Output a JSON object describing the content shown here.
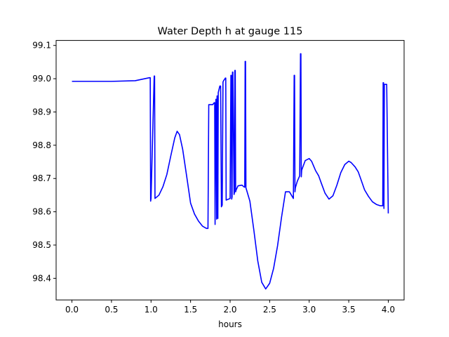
{
  "chart_data": {
    "type": "line",
    "title": "Water Depth h at gauge 115",
    "xlabel": "hours",
    "ylabel": "",
    "xlim": [
      -0.2,
      4.2
    ],
    "ylim": [
      98.335,
      99.115
    ],
    "xticks": [
      0.0,
      0.5,
      1.0,
      1.5,
      2.0,
      2.5,
      3.0,
      3.5,
      4.0
    ],
    "xtick_labels": [
      "0.0",
      "0.5",
      "1.0",
      "1.5",
      "2.0",
      "2.5",
      "3.0",
      "3.5",
      "4.0"
    ],
    "yticks": [
      98.4,
      98.5,
      98.6,
      98.7,
      98.8,
      98.9,
      99.0,
      99.1
    ],
    "ytick_labels": [
      "98.4",
      "98.5",
      "98.6",
      "98.7",
      "98.8",
      "98.9",
      "99.0",
      "99.1"
    ],
    "grid": false,
    "series": [
      {
        "color": "#0000ff",
        "x": [
          0.0,
          0.5,
          0.8,
          0.98,
          0.99,
          0.995,
          1.0,
          1.04,
          1.045,
          1.05,
          1.1,
          1.15,
          1.2,
          1.25,
          1.3,
          1.33,
          1.36,
          1.4,
          1.45,
          1.5,
          1.55,
          1.6,
          1.65,
          1.7,
          1.72,
          1.73,
          1.76,
          1.78,
          1.8,
          1.805,
          1.81,
          1.82,
          1.825,
          1.83,
          1.835,
          1.84,
          1.845,
          1.85,
          1.87,
          1.88,
          1.89,
          1.9,
          1.91,
          1.92,
          1.93,
          1.94,
          1.945,
          1.95,
          2.0,
          2.01,
          2.015,
          2.02,
          2.025,
          2.03,
          2.035,
          2.05,
          2.055,
          2.06,
          2.065,
          2.07,
          2.075,
          2.1,
          2.15,
          2.18,
          2.185,
          2.19,
          2.195,
          2.2,
          2.25,
          2.3,
          2.35,
          2.4,
          2.45,
          2.5,
          2.55,
          2.6,
          2.65,
          2.7,
          2.75,
          2.8,
          2.81,
          2.815,
          2.82,
          2.825,
          2.85,
          2.88,
          2.89,
          2.895,
          2.9,
          2.905,
          2.95,
          3.0,
          3.03,
          3.08,
          3.12,
          3.15,
          3.2,
          3.25,
          3.3,
          3.35,
          3.4,
          3.45,
          3.5,
          3.53,
          3.58,
          3.62,
          3.65,
          3.7,
          3.75,
          3.8,
          3.85,
          3.9,
          3.93,
          3.935,
          3.94,
          3.945,
          3.95,
          3.98,
          4.0
        ],
        "y": [
          98.992,
          98.992,
          98.994,
          99.003,
          99.003,
          98.632,
          98.64,
          99.008,
          99.008,
          98.64,
          98.65,
          98.675,
          98.712,
          98.768,
          98.822,
          98.842,
          98.832,
          98.788,
          98.708,
          98.626,
          98.593,
          98.572,
          98.557,
          98.55,
          98.55,
          98.922,
          98.922,
          98.922,
          98.928,
          98.928,
          98.562,
          98.938,
          98.938,
          98.578,
          98.948,
          98.948,
          98.58,
          98.958,
          98.978,
          98.978,
          98.615,
          98.62,
          98.99,
          98.995,
          98.998,
          99.002,
          99.002,
          98.635,
          98.64,
          99.01,
          99.01,
          98.638,
          98.645,
          99.02,
          99.02,
          98.652,
          98.658,
          99.025,
          99.025,
          98.66,
          98.665,
          98.678,
          98.68,
          98.674,
          98.674,
          99.052,
          99.052,
          98.672,
          98.632,
          98.545,
          98.452,
          98.388,
          98.368,
          98.385,
          98.43,
          98.498,
          98.583,
          98.66,
          98.66,
          98.64,
          99.01,
          99.01,
          98.66,
          98.672,
          98.692,
          98.708,
          99.075,
          99.075,
          98.705,
          98.725,
          98.754,
          98.76,
          98.752,
          98.724,
          98.708,
          98.688,
          98.656,
          98.638,
          98.648,
          98.68,
          98.718,
          98.742,
          98.752,
          98.748,
          98.735,
          98.72,
          98.7,
          98.666,
          98.646,
          98.63,
          98.622,
          98.618,
          98.618,
          98.988,
          98.988,
          98.61,
          98.983,
          98.983,
          98.595
        ]
      }
    ]
  }
}
